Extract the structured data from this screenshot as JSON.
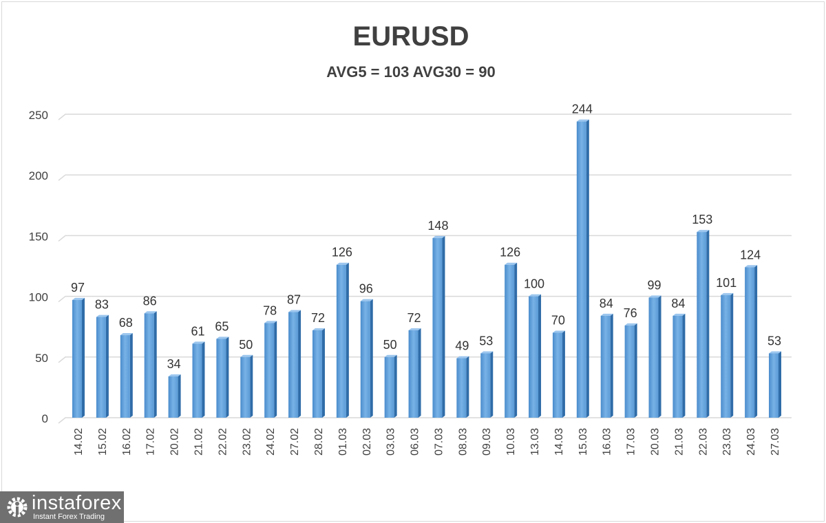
{
  "chart_data": {
    "type": "bar",
    "title": "EURUSD",
    "subtitle": "AVG5 = 103 AVG30 = 90",
    "categories": [
      "14.02",
      "15.02",
      "16.02",
      "17.02",
      "20.02",
      "21.02",
      "22.02",
      "23.02",
      "24.02",
      "27.02",
      "28.02",
      "01.03",
      "02.03",
      "03.03",
      "06.03",
      "07.03",
      "08.03",
      "09.03",
      "10.03",
      "13.03",
      "14.03",
      "15.03",
      "16.03",
      "17.03",
      "20.03",
      "21.03",
      "22.03",
      "23.03",
      "24.03",
      "27.03"
    ],
    "values": [
      97,
      83,
      68,
      86,
      34,
      61,
      65,
      50,
      78,
      87,
      72,
      126,
      96,
      50,
      72,
      148,
      49,
      53,
      126,
      100,
      70,
      244,
      84,
      76,
      99,
      84,
      153,
      101,
      124,
      53
    ],
    "ylim": [
      0,
      250
    ],
    "yticks": [
      0,
      50,
      100,
      150,
      200,
      250
    ],
    "grid": true,
    "data_labels": true,
    "bar_color": "#5b9bd5",
    "xlabel": "",
    "ylabel": ""
  },
  "logo": {
    "brand": "instaforex",
    "tagline": "Instant Forex Trading"
  }
}
